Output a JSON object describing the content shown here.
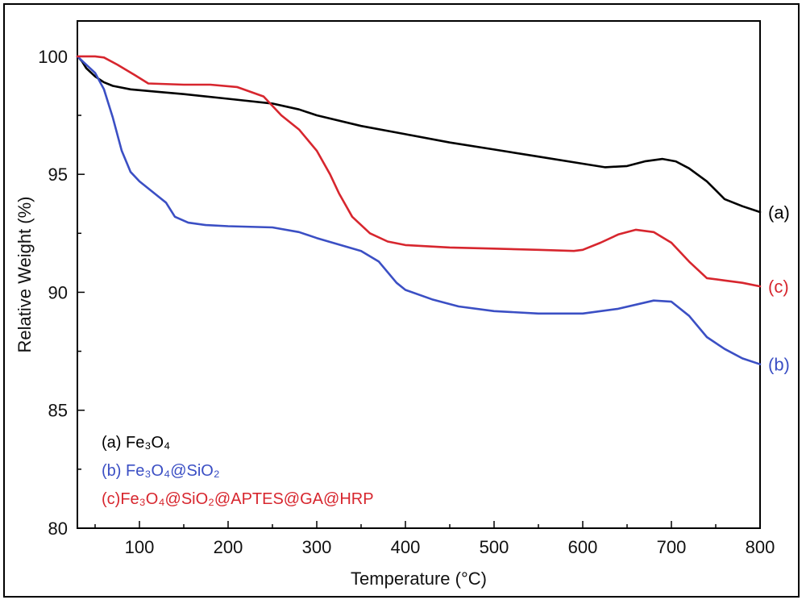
{
  "chart_data": {
    "type": "line",
    "title": "",
    "xlabel": "Temperature (°C)",
    "ylabel": "Relative Weight (%)",
    "xlim": [
      30,
      800
    ],
    "ylim": [
      80,
      101.5
    ],
    "x_ticks": [
      100,
      200,
      300,
      400,
      500,
      600,
      700,
      800
    ],
    "y_ticks": [
      80,
      85,
      90,
      95,
      100
    ],
    "x_minor_step": 50,
    "y_minor_step": 2.5,
    "grid": false,
    "legend_position": "bottom-left",
    "series": [
      {
        "id": "a",
        "name": "(a) Fe₃O₄",
        "end_label": "(a)",
        "color": "#000000",
        "points": [
          [
            30,
            100
          ],
          [
            35,
            99.8
          ],
          [
            40,
            99.5
          ],
          [
            50,
            99.15
          ],
          [
            60,
            98.9
          ],
          [
            70,
            98.75
          ],
          [
            90,
            98.6
          ],
          [
            120,
            98.5
          ],
          [
            150,
            98.4
          ],
          [
            200,
            98.2
          ],
          [
            250,
            98.0
          ],
          [
            280,
            97.75
          ],
          [
            300,
            97.5
          ],
          [
            350,
            97.05
          ],
          [
            400,
            96.7
          ],
          [
            450,
            96.35
          ],
          [
            500,
            96.05
          ],
          [
            550,
            95.75
          ],
          [
            600,
            95.45
          ],
          [
            625,
            95.3
          ],
          [
            650,
            95.35
          ],
          [
            670,
            95.55
          ],
          [
            690,
            95.65
          ],
          [
            705,
            95.55
          ],
          [
            720,
            95.25
          ],
          [
            740,
            94.7
          ],
          [
            760,
            93.95
          ],
          [
            780,
            93.65
          ],
          [
            800,
            93.4
          ]
        ]
      },
      {
        "id": "b",
        "name": "(b) Fe₃O₄@SiO₂",
        "end_label": "(b)",
        "color": "#3b4fc4",
        "points": [
          [
            30,
            100
          ],
          [
            50,
            99.3
          ],
          [
            60,
            98.6
          ],
          [
            70,
            97.4
          ],
          [
            80,
            96.0
          ],
          [
            90,
            95.1
          ],
          [
            100,
            94.7
          ],
          [
            120,
            94.1
          ],
          [
            130,
            93.8
          ],
          [
            140,
            93.2
          ],
          [
            155,
            92.95
          ],
          [
            175,
            92.85
          ],
          [
            200,
            92.8
          ],
          [
            250,
            92.75
          ],
          [
            280,
            92.55
          ],
          [
            300,
            92.3
          ],
          [
            350,
            91.75
          ],
          [
            370,
            91.3
          ],
          [
            390,
            90.4
          ],
          [
            400,
            90.1
          ],
          [
            430,
            89.7
          ],
          [
            460,
            89.4
          ],
          [
            500,
            89.2
          ],
          [
            550,
            89.1
          ],
          [
            600,
            89.1
          ],
          [
            640,
            89.3
          ],
          [
            680,
            89.65
          ],
          [
            700,
            89.6
          ],
          [
            720,
            89.0
          ],
          [
            740,
            88.1
          ],
          [
            760,
            87.6
          ],
          [
            780,
            87.2
          ],
          [
            800,
            86.95
          ]
        ]
      },
      {
        "id": "c",
        "name": "(c)Fe₃O₄@SiO₂@APTES@GA@HRP",
        "end_label": "(c)",
        "color": "#d7262e",
        "points": [
          [
            30,
            100
          ],
          [
            50,
            100
          ],
          [
            60,
            99.95
          ],
          [
            75,
            99.65
          ],
          [
            95,
            99.2
          ],
          [
            110,
            98.85
          ],
          [
            150,
            98.8
          ],
          [
            180,
            98.8
          ],
          [
            210,
            98.7
          ],
          [
            240,
            98.3
          ],
          [
            260,
            97.5
          ],
          [
            280,
            96.9
          ],
          [
            300,
            96.0
          ],
          [
            315,
            95.0
          ],
          [
            325,
            94.2
          ],
          [
            340,
            93.2
          ],
          [
            360,
            92.5
          ],
          [
            380,
            92.15
          ],
          [
            400,
            92.0
          ],
          [
            450,
            91.9
          ],
          [
            500,
            91.85
          ],
          [
            550,
            91.8
          ],
          [
            590,
            91.75
          ],
          [
            600,
            91.8
          ],
          [
            620,
            92.1
          ],
          [
            640,
            92.45
          ],
          [
            660,
            92.65
          ],
          [
            680,
            92.55
          ],
          [
            700,
            92.1
          ],
          [
            720,
            91.3
          ],
          [
            740,
            90.6
          ],
          [
            760,
            90.5
          ],
          [
            780,
            90.4
          ],
          [
            800,
            90.25
          ]
        ]
      }
    ]
  }
}
